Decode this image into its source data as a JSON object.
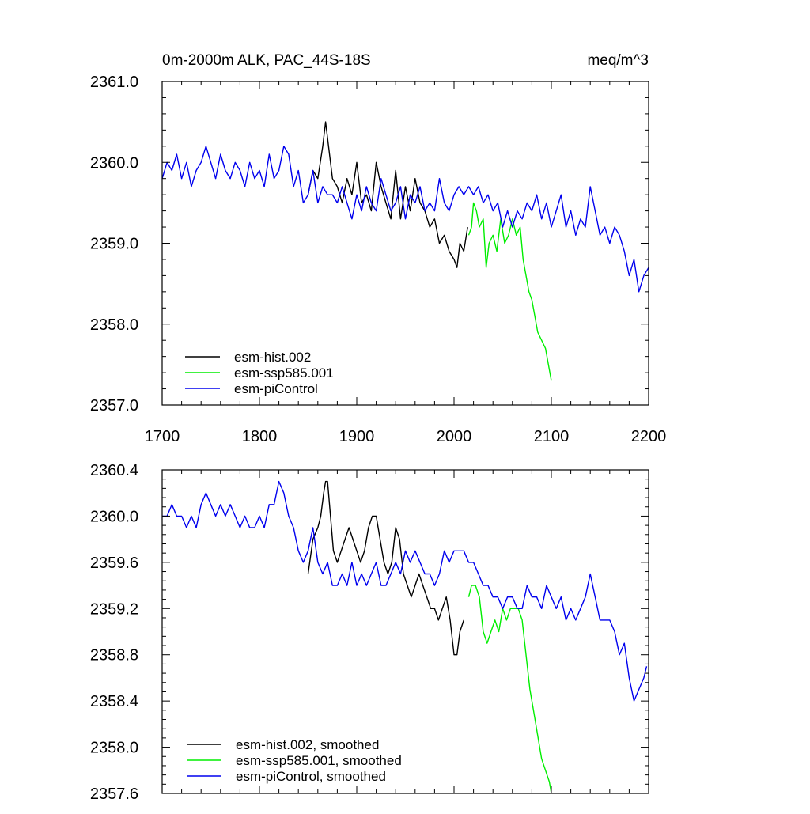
{
  "chart_data": [
    {
      "type": "line",
      "title_left": "0m-2000m ALK, PAC_44S-18S",
      "title_right": "meq/m^3",
      "xlim": [
        1700,
        2200
      ],
      "ylim": [
        2357.0,
        2361.0
      ],
      "x_ticks": [
        1700,
        1800,
        1900,
        2000,
        2100,
        2200
      ],
      "x_tick_labels": [
        "1700",
        "1800",
        "1900",
        "2000",
        "2100",
        "2200"
      ],
      "y_ticks": [
        2357.0,
        2358.0,
        2359.0,
        2360.0,
        2361.0
      ],
      "y_tick_labels": [
        "2357.0",
        "2358.0",
        "2359.0",
        "2360.0",
        "2361.0"
      ],
      "legend_position": "bottom-left",
      "series": [
        {
          "name": "esm-hist.002",
          "color": "#000000",
          "x": [
            1850,
            1855,
            1860,
            1865,
            1868,
            1870,
            1875,
            1880,
            1885,
            1890,
            1895,
            1900,
            1905,
            1910,
            1915,
            1920,
            1925,
            1930,
            1935,
            1940,
            1945,
            1950,
            1955,
            1960,
            1965,
            1970,
            1975,
            1980,
            1985,
            1990,
            1995,
            2000,
            2003,
            2006,
            2010,
            2014
          ],
          "y": [
            2359.6,
            2359.9,
            2359.8,
            2360.2,
            2360.5,
            2360.3,
            2359.8,
            2359.7,
            2359.5,
            2359.8,
            2359.6,
            2360.0,
            2359.5,
            2359.6,
            2359.4,
            2360.0,
            2359.7,
            2359.5,
            2359.3,
            2359.9,
            2359.3,
            2359.7,
            2359.4,
            2359.8,
            2359.5,
            2359.4,
            2359.2,
            2359.3,
            2359.0,
            2359.1,
            2358.9,
            2358.8,
            2358.7,
            2359.0,
            2358.9,
            2359.2
          ]
        },
        {
          "name": "esm-ssp585.001",
          "color": "#00ee00",
          "x": [
            2015,
            2018,
            2020,
            2023,
            2026,
            2030,
            2033,
            2036,
            2040,
            2044,
            2048,
            2052,
            2056,
            2060,
            2064,
            2068,
            2071,
            2074,
            2077,
            2080,
            2083,
            2086,
            2090,
            2094,
            2097,
            2100
          ],
          "y": [
            2359.1,
            2359.2,
            2359.5,
            2359.4,
            2359.2,
            2359.3,
            2358.7,
            2359.0,
            2359.1,
            2358.9,
            2359.3,
            2359.0,
            2359.1,
            2359.3,
            2359.1,
            2359.2,
            2358.8,
            2358.6,
            2358.4,
            2358.3,
            2358.1,
            2357.9,
            2357.8,
            2357.7,
            2357.5,
            2357.3
          ]
        },
        {
          "name": "esm-piControl",
          "color": "#0000ee",
          "x": [
            1700,
            1705,
            1710,
            1715,
            1720,
            1725,
            1730,
            1735,
            1740,
            1745,
            1750,
            1755,
            1760,
            1765,
            1770,
            1775,
            1780,
            1785,
            1790,
            1795,
            1800,
            1805,
            1810,
            1815,
            1820,
            1825,
            1830,
            1835,
            1840,
            1845,
            1850,
            1855,
            1860,
            1865,
            1870,
            1875,
            1880,
            1885,
            1890,
            1895,
            1900,
            1905,
            1910,
            1915,
            1920,
            1925,
            1930,
            1935,
            1940,
            1945,
            1950,
            1955,
            1960,
            1965,
            1970,
            1975,
            1980,
            1985,
            1990,
            1995,
            2000,
            2005,
            2010,
            2015,
            2020,
            2025,
            2030,
            2035,
            2040,
            2045,
            2050,
            2055,
            2060,
            2065,
            2070,
            2075,
            2080,
            2085,
            2090,
            2095,
            2100,
            2105,
            2110,
            2115,
            2120,
            2125,
            2130,
            2135,
            2140,
            2145,
            2150,
            2155,
            2160,
            2165,
            2170,
            2175,
            2180,
            2185,
            2190,
            2195,
            2200
          ],
          "y": [
            2359.8,
            2360.0,
            2359.9,
            2360.1,
            2359.8,
            2360.0,
            2359.7,
            2359.9,
            2360.0,
            2360.2,
            2360.0,
            2359.8,
            2360.1,
            2359.9,
            2359.8,
            2360.0,
            2359.9,
            2359.7,
            2360.0,
            2359.8,
            2359.9,
            2359.7,
            2360.1,
            2359.8,
            2359.9,
            2360.2,
            2360.1,
            2359.7,
            2359.9,
            2359.5,
            2359.6,
            2359.9,
            2359.5,
            2359.7,
            2359.6,
            2359.6,
            2359.5,
            2359.7,
            2359.5,
            2359.3,
            2359.6,
            2359.4,
            2359.7,
            2359.5,
            2359.4,
            2359.8,
            2359.6,
            2359.4,
            2359.5,
            2359.7,
            2359.3,
            2359.6,
            2359.5,
            2359.7,
            2359.4,
            2359.5,
            2359.4,
            2359.8,
            2359.5,
            2359.4,
            2359.6,
            2359.7,
            2359.6,
            2359.7,
            2359.6,
            2359.7,
            2359.5,
            2359.6,
            2359.4,
            2359.5,
            2359.2,
            2359.4,
            2359.2,
            2359.4,
            2359.3,
            2359.5,
            2359.4,
            2359.6,
            2359.3,
            2359.5,
            2359.2,
            2359.4,
            2359.6,
            2359.2,
            2359.4,
            2359.1,
            2359.3,
            2359.2,
            2359.7,
            2359.4,
            2359.1,
            2359.2,
            2359.0,
            2359.2,
            2359.1,
            2358.9,
            2358.6,
            2358.8,
            2358.4,
            2358.6,
            2358.7
          ]
        }
      ]
    },
    {
      "type": "line",
      "xlim": [
        1700,
        2200
      ],
      "ylim": [
        2357.6,
        2360.4
      ],
      "x_ticks": [
        1700,
        1800,
        1900,
        2000,
        2100,
        2200
      ],
      "y_ticks": [
        2357.6,
        2358.0,
        2358.4,
        2358.8,
        2359.2,
        2359.6,
        2360.0,
        2360.4
      ],
      "y_tick_labels": [
        "2357.6",
        "2358.0",
        "2358.4",
        "2358.8",
        "2359.2",
        "2359.6",
        "2360.0",
        "2360.4"
      ],
      "legend_position": "bottom-left",
      "series": [
        {
          "name": "esm-hist.002, smoothed",
          "color": "#000000",
          "x": [
            1850,
            1855,
            1860,
            1863,
            1866,
            1868,
            1870,
            1873,
            1876,
            1880,
            1884,
            1888,
            1892,
            1896,
            1900,
            1904,
            1908,
            1912,
            1916,
            1920,
            1924,
            1928,
            1932,
            1936,
            1940,
            1944,
            1948,
            1952,
            1956,
            1960,
            1964,
            1968,
            1972,
            1976,
            1980,
            1984,
            1988,
            1992,
            1996,
            2000,
            2003,
            2006,
            2010
          ],
          "y": [
            2359.5,
            2359.8,
            2359.9,
            2360.0,
            2360.2,
            2360.3,
            2360.3,
            2360.0,
            2359.7,
            2359.6,
            2359.7,
            2359.8,
            2359.9,
            2359.8,
            2359.7,
            2359.6,
            2359.7,
            2359.9,
            2360.0,
            2360.0,
            2359.8,
            2359.6,
            2359.5,
            2359.6,
            2359.9,
            2359.8,
            2359.5,
            2359.4,
            2359.3,
            2359.4,
            2359.5,
            2359.4,
            2359.3,
            2359.2,
            2359.2,
            2359.1,
            2359.2,
            2359.3,
            2359.1,
            2358.8,
            2358.8,
            2359.0,
            2359.1
          ]
        },
        {
          "name": "esm-ssp585.001, smoothed",
          "color": "#00ee00",
          "x": [
            2015,
            2018,
            2022,
            2026,
            2030,
            2034,
            2038,
            2042,
            2046,
            2050,
            2054,
            2058,
            2062,
            2066,
            2070,
            2074,
            2078,
            2082,
            2086,
            2090,
            2094,
            2098,
            2100
          ],
          "y": [
            2359.3,
            2359.4,
            2359.4,
            2359.3,
            2359.0,
            2358.9,
            2359.0,
            2359.1,
            2359.0,
            2359.2,
            2359.1,
            2359.2,
            2359.2,
            2359.2,
            2359.1,
            2358.8,
            2358.5,
            2358.3,
            2358.1,
            2357.9,
            2357.8,
            2357.7,
            2357.6
          ]
        },
        {
          "name": "esm-piControl, smoothed",
          "color": "#0000ee",
          "x": [
            1700,
            1705,
            1710,
            1715,
            1720,
            1725,
            1730,
            1735,
            1740,
            1745,
            1750,
            1755,
            1760,
            1765,
            1770,
            1775,
            1780,
            1785,
            1790,
            1795,
            1800,
            1805,
            1810,
            1815,
            1820,
            1825,
            1830,
            1835,
            1840,
            1845,
            1850,
            1855,
            1860,
            1865,
            1870,
            1875,
            1880,
            1885,
            1890,
            1895,
            1900,
            1905,
            1910,
            1915,
            1920,
            1925,
            1930,
            1935,
            1940,
            1945,
            1950,
            1955,
            1960,
            1965,
            1970,
            1975,
            1980,
            1985,
            1990,
            1995,
            2000,
            2005,
            2010,
            2015,
            2020,
            2025,
            2030,
            2035,
            2040,
            2045,
            2050,
            2055,
            2060,
            2065,
            2070,
            2075,
            2080,
            2085,
            2090,
            2095,
            2100,
            2105,
            2110,
            2115,
            2120,
            2125,
            2130,
            2135,
            2140,
            2145,
            2150,
            2155,
            2160,
            2165,
            2170,
            2175,
            2180,
            2185,
            2190,
            2195,
            2198
          ],
          "y": [
            2360.0,
            2360.0,
            2360.1,
            2360.0,
            2360.0,
            2359.9,
            2360.0,
            2359.9,
            2360.1,
            2360.2,
            2360.1,
            2360.0,
            2360.1,
            2360.0,
            2360.1,
            2360.0,
            2359.9,
            2360.0,
            2359.9,
            2359.9,
            2360.0,
            2359.9,
            2360.1,
            2360.1,
            2360.3,
            2360.2,
            2360.0,
            2359.9,
            2359.7,
            2359.6,
            2359.7,
            2359.9,
            2359.6,
            2359.5,
            2359.6,
            2359.4,
            2359.4,
            2359.5,
            2359.4,
            2359.6,
            2359.4,
            2359.5,
            2359.4,
            2359.5,
            2359.6,
            2359.4,
            2359.4,
            2359.5,
            2359.6,
            2359.5,
            2359.7,
            2359.6,
            2359.7,
            2359.6,
            2359.5,
            2359.5,
            2359.4,
            2359.5,
            2359.7,
            2359.6,
            2359.7,
            2359.7,
            2359.7,
            2359.6,
            2359.6,
            2359.5,
            2359.4,
            2359.4,
            2359.3,
            2359.3,
            2359.2,
            2359.3,
            2359.3,
            2359.2,
            2359.2,
            2359.4,
            2359.3,
            2359.3,
            2359.2,
            2359.4,
            2359.3,
            2359.2,
            2359.3,
            2359.1,
            2359.2,
            2359.1,
            2359.2,
            2359.3,
            2359.5,
            2359.3,
            2359.1,
            2359.1,
            2359.1,
            2359.0,
            2358.8,
            2358.9,
            2358.6,
            2358.4,
            2358.5,
            2358.6,
            2358.7
          ]
        }
      ]
    }
  ]
}
